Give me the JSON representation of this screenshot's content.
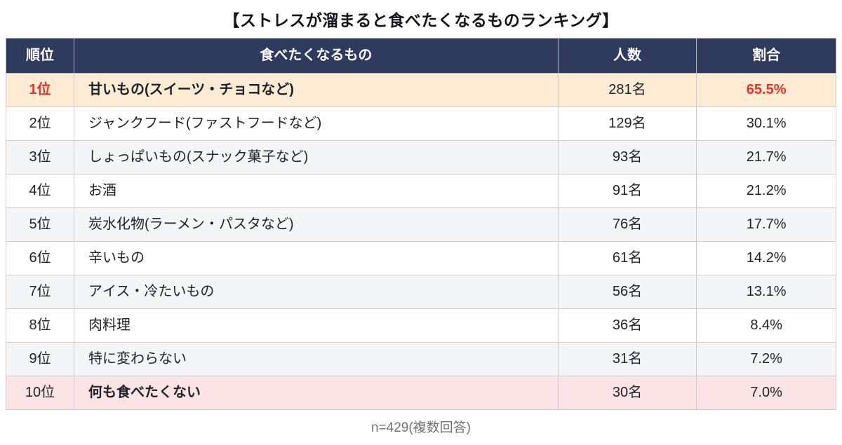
{
  "title": "【ストレスが溜まると食べたくなるものランキング】",
  "note": "n=429(複数回答)",
  "chart_data": {
    "type": "table",
    "title": "【ストレスが溜まると食べたくなるものランキング】",
    "columns": [
      "順位",
      "食べたくなるもの",
      "人数",
      "割合"
    ],
    "rows": [
      {
        "rank": "1位",
        "item": "甘いもの(スイーツ・チョコなど)",
        "count": "281名",
        "count_value": 281,
        "percent": "65.5%",
        "percent_value": 65.5,
        "emphasis": "top"
      },
      {
        "rank": "2位",
        "item": "ジャンクフード(ファストフードなど)",
        "count": "129名",
        "count_value": 129,
        "percent": "30.1%",
        "percent_value": 30.1,
        "emphasis": "none"
      },
      {
        "rank": "3位",
        "item": "しょっぱいもの(スナック菓子など)",
        "count": "93名",
        "count_value": 93,
        "percent": "21.7%",
        "percent_value": 21.7,
        "emphasis": "none"
      },
      {
        "rank": "4位",
        "item": "お酒",
        "count": "91名",
        "count_value": 91,
        "percent": "21.2%",
        "percent_value": 21.2,
        "emphasis": "none"
      },
      {
        "rank": "5位",
        "item": "炭水化物(ラーメン・パスタなど)",
        "count": "76名",
        "count_value": 76,
        "percent": "17.7%",
        "percent_value": 17.7,
        "emphasis": "none"
      },
      {
        "rank": "6位",
        "item": "辛いもの",
        "count": "61名",
        "count_value": 61,
        "percent": "14.2%",
        "percent_value": 14.2,
        "emphasis": "none"
      },
      {
        "rank": "7位",
        "item": "アイス・冷たいもの",
        "count": "56名",
        "count_value": 56,
        "percent": "13.1%",
        "percent_value": 13.1,
        "emphasis": "none"
      },
      {
        "rank": "8位",
        "item": "肉料理",
        "count": "36名",
        "count_value": 36,
        "percent": "8.4%",
        "percent_value": 8.4,
        "emphasis": "none"
      },
      {
        "rank": "9位",
        "item": "特に変わらない",
        "count": "31名",
        "count_value": 31,
        "percent": "7.2%",
        "percent_value": 7.2,
        "emphasis": "none"
      },
      {
        "rank": "10位",
        "item": "何も食べたくない",
        "count": "30名",
        "count_value": 30,
        "percent": "7.0%",
        "percent_value": 7.0,
        "emphasis": "bottom"
      }
    ],
    "note": "n=429(複数回答)",
    "n": 429,
    "legend_position": "none",
    "grid": true
  },
  "colors": {
    "header_bg": "#2e3b5e",
    "accent_red": "#e5342b",
    "top_row_bg": "#fdecd3",
    "bottom_row_bg": "#fce4e6",
    "zebra_bg": "#f4f5f7"
  }
}
